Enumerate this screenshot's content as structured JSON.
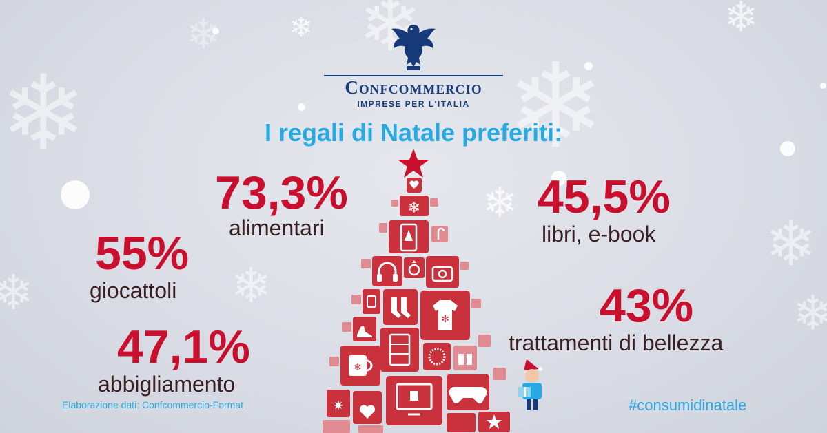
{
  "brand": {
    "name": "Confcommercio",
    "tagline": "IMPRESE PER L'ITALIA"
  },
  "title": "I regali di Natale preferiti:",
  "stats": {
    "alimentari": {
      "value": "73,3%",
      "label": "alimentari"
    },
    "libri": {
      "value": "45,5%",
      "label": "libri, e-book"
    },
    "giocattoli": {
      "value": "55%",
      "label": "giocattoli"
    },
    "bellezza": {
      "value": "43%",
      "label": "trattamenti di bellezza"
    },
    "abbigliamento": {
      "value": "47,1%",
      "label": "abbigliamento"
    }
  },
  "source": "Elaborazione dati: Confcommercio-Format",
  "hashtag": "#consumidinatale",
  "colors": {
    "accent_blue": "#29a9e1",
    "brand_navy": "#163a7a",
    "stat_red": "#c8102e",
    "tree_red": "#c9323d",
    "tree_pink": "#e08a92"
  },
  "icons": [
    "eagle-logo-icon",
    "star-icon",
    "heart-icon",
    "snowflake-icon",
    "smartphone-icon",
    "candy-cane-icon",
    "headphones-icon",
    "ring-icon",
    "camera-icon",
    "watch-icon",
    "socks-icon",
    "sweater-icon",
    "shoe-icon",
    "dresser-icon",
    "necklace-icon",
    "gift-icon",
    "mug-icon",
    "tv-icon",
    "gamepad-icon",
    "elf-icon"
  ]
}
